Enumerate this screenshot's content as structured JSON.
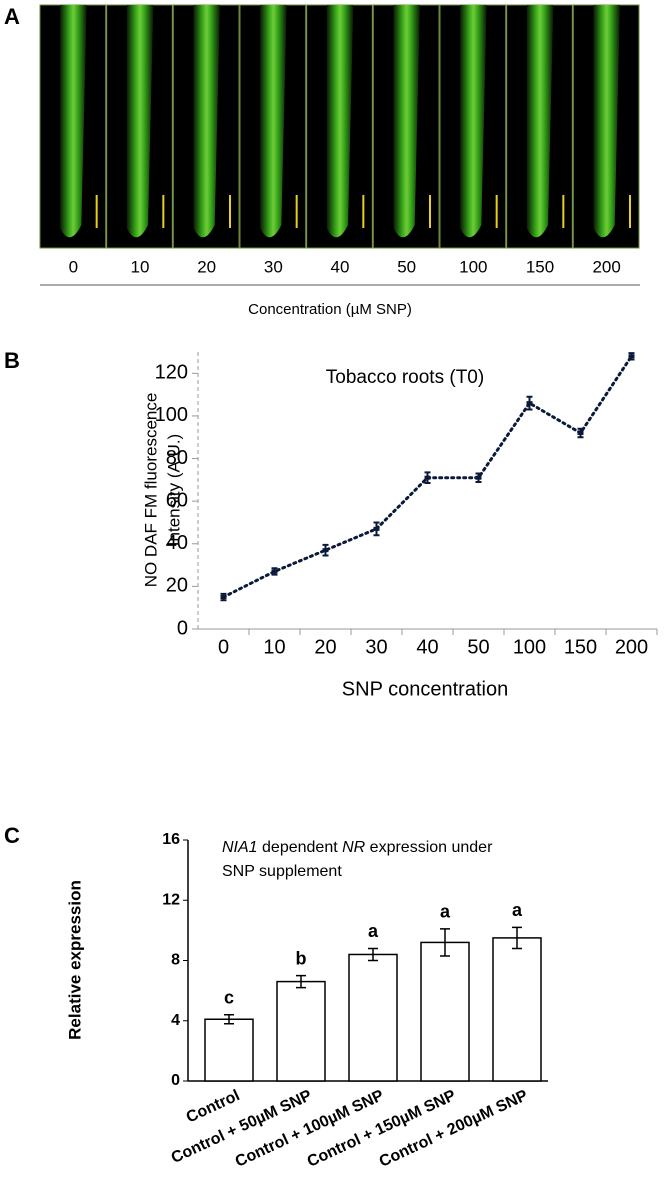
{
  "chart_data": [
    {
      "type": "image",
      "panel_label": "A",
      "categories": [
        "0",
        "10",
        "20",
        "30",
        "40",
        "50",
        "100",
        "150",
        "200"
      ],
      "xlabel": "Concentration (µM SNP)"
    },
    {
      "type": "line",
      "panel_label": "B",
      "title": "Tobacco roots (T0)",
      "ylabel": [
        "NO DAF FM fluorescence",
        "Intensity (A.U.)"
      ],
      "xlabel": "SNP concentration",
      "categories": [
        "0",
        "10",
        "20",
        "30",
        "40",
        "50",
        "100",
        "150",
        "200"
      ],
      "values": [
        15,
        27,
        37,
        47,
        71,
        71,
        106,
        92,
        128
      ],
      "errors": [
        1.5,
        1.5,
        2.5,
        3,
        2.5,
        2,
        3,
        2,
        1.5
      ],
      "color": "#0b1a3a",
      "ylim": [
        0,
        130
      ],
      "yticks": [
        0,
        20,
        40,
        60,
        80,
        100,
        120
      ]
    },
    {
      "type": "bar",
      "panel_label": "C",
      "title": [
        "NIA1",
        " dependent ",
        "NR",
        " expression under",
        "SNP supplement"
      ],
      "ylabel": "Relative expression",
      "categories": [
        "Control",
        "Control + 50µM SNP",
        "Control + 100µM SNP",
        "Control + 150µM SNP",
        "Control + 200µM SNP"
      ],
      "values": [
        4.1,
        6.6,
        8.4,
        9.2,
        9.5
      ],
      "errors": [
        0.3,
        0.4,
        0.4,
        0.9,
        0.7
      ],
      "annotations": [
        "c",
        "b",
        "a",
        "a",
        "a"
      ],
      "color": "#ffffff",
      "ylim": [
        0,
        16
      ],
      "yticks": [
        0,
        4,
        8,
        12,
        16
      ]
    }
  ]
}
